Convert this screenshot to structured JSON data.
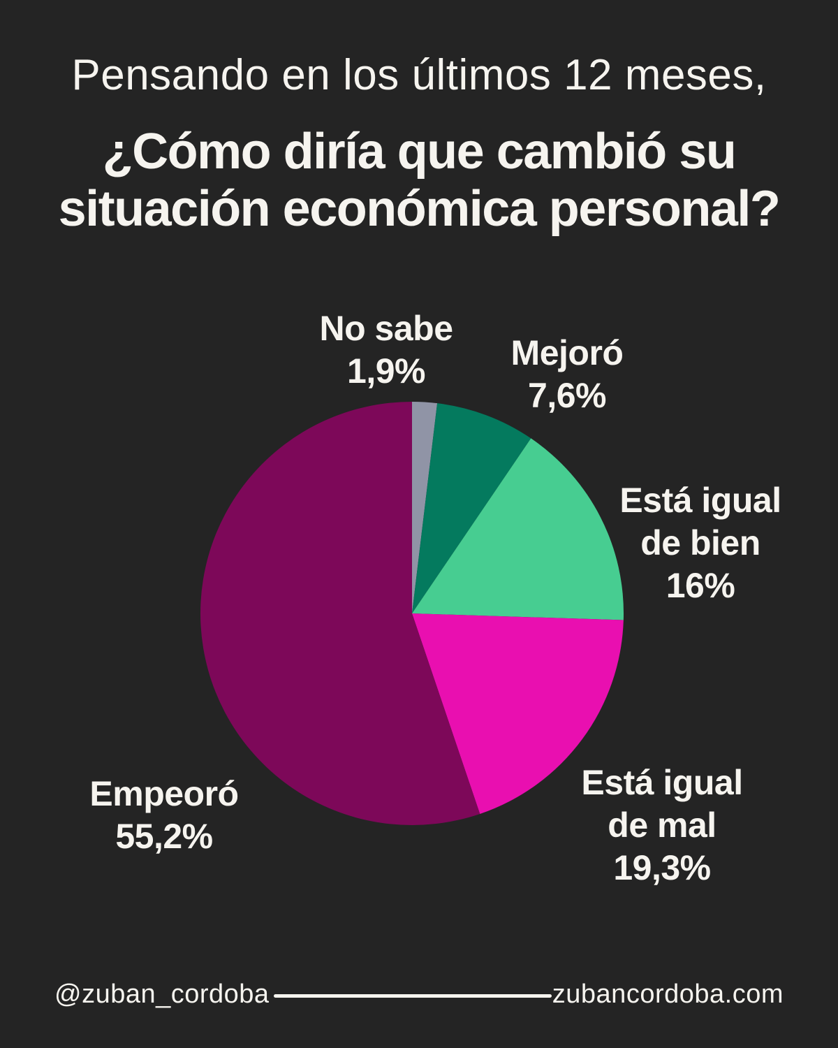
{
  "page": {
    "background_color": "#242424",
    "text_color": "#f6f4ef"
  },
  "header": {
    "intro": "Pensando en los últimos 12 meses,",
    "question_line1": "¿Cómo diría que cambió su",
    "question_line2": "situación económica personal?"
  },
  "chart_data": {
    "type": "pie",
    "title": "¿Cómo diría que cambió su situación económica personal?",
    "start_angle_deg": 0,
    "direction": "clockwise",
    "slices": [
      {
        "label": "No sabe",
        "label_lines": [
          "No sabe"
        ],
        "value": 1.9,
        "value_text": "1,9%",
        "color": "#9094a6"
      },
      {
        "label": "Mejoró",
        "label_lines": [
          "Mejoró"
        ],
        "value": 7.6,
        "value_text": "7,6%",
        "color": "#047a5e"
      },
      {
        "label": "Está igual de bien",
        "label_lines": [
          "Está igual",
          "de bien"
        ],
        "value": 16,
        "value_text": "16%",
        "color": "#47cd91"
      },
      {
        "label": "Está igual de mal",
        "label_lines": [
          "Está igual",
          "de mal"
        ],
        "value": 19.3,
        "value_text": "19,3%",
        "color": "#e90fb0"
      },
      {
        "label": "Empeoró",
        "label_lines": [
          "Empeoró"
        ],
        "value": 55.2,
        "value_text": "55,2%",
        "color": "#7d0859"
      }
    ]
  },
  "footer": {
    "handle": "@zuban_cordoba",
    "website": "zubancordoba.com"
  }
}
